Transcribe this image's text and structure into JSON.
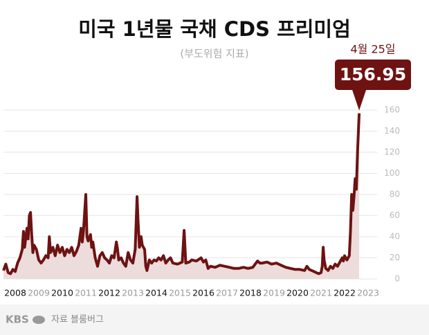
{
  "chart_data": {
    "type": "area",
    "title": "미국 1년물 국채 CDS 프리미엄",
    "subtitle": "(부도위험 지표)",
    "annotation": "4월 25일",
    "color": "#6e1212",
    "fill_color": "#ecdcdc",
    "grid": true,
    "ylim": [
      0,
      160
    ],
    "yticks": [
      0,
      20,
      40,
      60,
      80,
      100,
      120,
      140,
      160
    ],
    "xlim": [
      2008,
      2024
    ],
    "xticks": [
      {
        "value": 2008.5,
        "label": "2008"
      },
      {
        "value": 2009.5,
        "label": "2009"
      },
      {
        "value": 2010.5,
        "label": "2010"
      },
      {
        "value": 2011.5,
        "label": "2011"
      },
      {
        "value": 2012.5,
        "label": "2012"
      },
      {
        "value": 2013.5,
        "label": "2013"
      },
      {
        "value": 2014.5,
        "label": "2014"
      },
      {
        "value": 2015.5,
        "label": "2015"
      },
      {
        "value": 2016.5,
        "label": "2016"
      },
      {
        "value": 2017.5,
        "label": "2017"
      },
      {
        "value": 2018.5,
        "label": "2018"
      },
      {
        "value": 2019.5,
        "label": "2019"
      },
      {
        "value": 2020.5,
        "label": "2020"
      },
      {
        "value": 2021.5,
        "label": "2021"
      },
      {
        "value": 2022.5,
        "label": "2022"
      },
      {
        "value": 2023.5,
        "label": "2023"
      }
    ],
    "x": [
      2008.0,
      2008.1,
      2008.2,
      2008.3,
      2008.4,
      2008.5,
      2008.6,
      2008.7,
      2008.8,
      2008.85,
      2008.9,
      2009.0,
      2009.05,
      2009.1,
      2009.15,
      2009.2,
      2009.25,
      2009.3,
      2009.4,
      2009.5,
      2009.6,
      2009.7,
      2009.8,
      2009.9,
      2009.95,
      2010.0,
      2010.1,
      2010.2,
      2010.3,
      2010.4,
      2010.5,
      2010.6,
      2010.7,
      2010.8,
      2010.9,
      2011.0,
      2011.1,
      2011.2,
      2011.3,
      2011.35,
      2011.4,
      2011.5,
      2011.55,
      2011.6,
      2011.7,
      2011.75,
      2011.8,
      2011.9,
      2012.0,
      2012.1,
      2012.2,
      2012.3,
      2012.4,
      2012.5,
      2012.6,
      2012.7,
      2012.8,
      2012.85,
      2012.9,
      2013.0,
      2013.1,
      2013.2,
      2013.3,
      2013.4,
      2013.5,
      2013.6,
      2013.68,
      2013.72,
      2013.78,
      2013.85,
      2013.9,
      2014.0,
      2014.05,
      2014.1,
      2014.2,
      2014.3,
      2014.4,
      2014.5,
      2014.6,
      2014.7,
      2014.8,
      2014.9,
      2015.0,
      2015.1,
      2015.2,
      2015.4,
      2015.6,
      2015.68,
      2015.75,
      2015.9,
      2016.0,
      2016.2,
      2016.4,
      2016.5,
      2016.6,
      2016.7,
      2016.8,
      2017.0,
      2017.2,
      2017.4,
      2017.6,
      2017.8,
      2018.0,
      2018.2,
      2018.4,
      2018.6,
      2018.7,
      2018.8,
      2018.9,
      2019.0,
      2019.2,
      2019.4,
      2019.6,
      2019.8,
      2020.0,
      2020.2,
      2020.4,
      2020.6,
      2020.8,
      2020.9,
      2021.0,
      2021.1,
      2021.2,
      2021.3,
      2021.4,
      2021.5,
      2021.55,
      2021.59,
      2021.63,
      2021.7,
      2021.8,
      2021.9,
      2022.0,
      2022.1,
      2022.2,
      2022.3,
      2022.4,
      2022.45,
      2022.5,
      2022.6,
      2022.7,
      2022.75,
      2022.8,
      2022.85,
      2022.9,
      2022.95,
      2023.0,
      2023.05,
      2023.12
    ],
    "values": [
      8,
      14,
      6,
      5,
      9,
      7,
      15,
      20,
      28,
      45,
      30,
      48,
      38,
      60,
      63,
      42,
      25,
      32,
      28,
      18,
      15,
      18,
      22,
      20,
      40,
      25,
      30,
      22,
      32,
      25,
      30,
      22,
      28,
      25,
      30,
      22,
      26,
      32,
      48,
      35,
      45,
      80,
      40,
      36,
      42,
      30,
      35,
      20,
      12,
      22,
      25,
      20,
      18,
      15,
      22,
      20,
      35,
      28,
      18,
      20,
      15,
      12,
      25,
      18,
      15,
      28,
      78,
      55,
      30,
      40,
      32,
      28,
      12,
      8,
      18,
      15,
      18,
      17,
      20,
      18,
      22,
      15,
      18,
      20,
      15,
      14,
      16,
      46,
      15,
      16,
      18,
      17,
      20,
      16,
      18,
      10,
      12,
      11,
      13,
      12,
      11,
      10,
      10,
      11,
      10,
      11,
      14,
      17,
      15,
      15,
      16,
      14,
      15,
      13,
      11,
      10,
      9,
      9,
      8,
      12,
      9,
      8,
      7,
      6,
      5,
      6,
      12,
      30,
      18,
      10,
      8,
      12,
      10,
      14,
      12,
      16,
      20,
      17,
      22,
      18,
      22,
      45,
      80,
      65,
      78,
      95,
      85,
      120,
      156.95
    ]
  },
  "footer": {
    "logo": "KBS",
    "source": "자료 블룸버그"
  }
}
